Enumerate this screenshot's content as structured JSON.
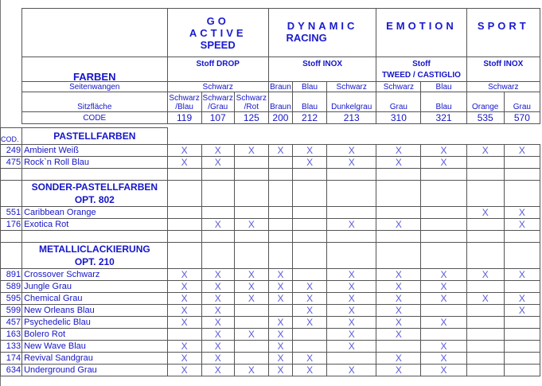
{
  "header": {
    "farben": "FARBEN",
    "seitenwangen": "Seitenwangen",
    "sitzflaeche": "Sitzfläche",
    "code": "CODE",
    "models": [
      {
        "name": [
          "GO",
          "ACTIVE",
          "SPEED"
        ],
        "fabric": [
          "Stoff DROP"
        ],
        "seitenwangen": [
          {
            "label": "Schwarz",
            "span": 3
          }
        ]
      },
      {
        "name": [
          "DYNAMIC",
          "RACING"
        ],
        "fabric": [
          "Stoff INOX"
        ],
        "seitenwangen": [
          {
            "label": "Braun",
            "span": 1
          },
          {
            "label": "Blau",
            "span": 1
          },
          {
            "label": "Schwarz",
            "span": 1
          }
        ]
      },
      {
        "name": [
          "EMOTION"
        ],
        "fabric": [
          "Stoff",
          "TWEED / CASTIGLIO"
        ],
        "seitenwangen": [
          {
            "label": "Schwarz",
            "span": 1
          },
          {
            "label": "Blau",
            "span": 1
          }
        ]
      },
      {
        "name": [
          "SPORT"
        ],
        "fabric": [
          "Stoff INOX"
        ],
        "seitenwangen": [
          {
            "label": "Schwarz",
            "span": 2
          }
        ]
      }
    ],
    "columns": [
      {
        "sitz": "Schwarz /Blau",
        "code": "119"
      },
      {
        "sitz": "Schwarz /Grau",
        "code": "107"
      },
      {
        "sitz": "Schwarz /Rot",
        "code": "125"
      },
      {
        "sitz": "Braun",
        "code": "200"
      },
      {
        "sitz": "Blau",
        "code": "212"
      },
      {
        "sitz": "Dunkelgrau",
        "code": "213"
      },
      {
        "sitz": "Grau",
        "code": "310"
      },
      {
        "sitz": "Blau",
        "code": "321"
      },
      {
        "sitz": "Orange",
        "code": "535"
      },
      {
        "sitz": "Grau",
        "code": "570"
      }
    ]
  },
  "mark": "X",
  "body": [
    {
      "type": "section",
      "cod": "COD.",
      "title": [
        "PASTELLFARBEN"
      ],
      "open": true
    },
    {
      "type": "row",
      "code": "249",
      "name": "Ambient Weiß",
      "marks": [
        1,
        1,
        1,
        1,
        1,
        1,
        1,
        1,
        1,
        1
      ]
    },
    {
      "type": "row",
      "code": "475",
      "name": "Rock`n Roll Blau",
      "marks": [
        1,
        1,
        0,
        0,
        1,
        1,
        1,
        1,
        0,
        0
      ]
    },
    {
      "type": "empty"
    },
    {
      "type": "section",
      "cod": "",
      "title": [
        "SONDER-PASTELLFARBEN",
        "OPT. 802"
      ]
    },
    {
      "type": "row",
      "code": "551",
      "name": "Caribbean Orange",
      "marks": [
        0,
        0,
        0,
        0,
        0,
        0,
        0,
        0,
        1,
        1
      ]
    },
    {
      "type": "row",
      "code": "176",
      "name": "Exotica Rot",
      "marks": [
        0,
        1,
        1,
        0,
        0,
        1,
        1,
        0,
        0,
        1
      ]
    },
    {
      "type": "empty"
    },
    {
      "type": "section",
      "cod": "",
      "title": [
        "METALLICLACKIERUNG",
        "OPT. 210"
      ]
    },
    {
      "type": "row",
      "code": "891",
      "name": "Crossover Schwarz",
      "marks": [
        1,
        1,
        1,
        1,
        0,
        1,
        1,
        1,
        1,
        1
      ]
    },
    {
      "type": "row",
      "code": "589",
      "name": "Jungle Grau",
      "marks": [
        1,
        1,
        1,
        1,
        1,
        1,
        1,
        1,
        0,
        0
      ]
    },
    {
      "type": "row",
      "code": "595",
      "name": "Chemical Grau",
      "marks": [
        1,
        1,
        1,
        1,
        1,
        1,
        1,
        1,
        1,
        1
      ]
    },
    {
      "type": "row",
      "code": "599",
      "name": "New Orleans Blau",
      "marks": [
        1,
        1,
        0,
        0,
        1,
        1,
        1,
        0,
        0,
        1
      ]
    },
    {
      "type": "row",
      "code": "457",
      "name": "Psychedelic Blau",
      "marks": [
        1,
        1,
        0,
        1,
        1,
        1,
        1,
        1,
        0,
        0
      ]
    },
    {
      "type": "row",
      "code": "163",
      "name": "Bolero Rot",
      "marks": [
        0,
        1,
        1,
        1,
        0,
        1,
        1,
        0,
        0,
        0
      ]
    },
    {
      "type": "row",
      "code": "133",
      "name": "New Wave Blau",
      "marks": [
        1,
        1,
        0,
        1,
        0,
        1,
        0,
        1,
        0,
        0
      ]
    },
    {
      "type": "row",
      "code": "174",
      "name": "Revival Sandgrau",
      "marks": [
        1,
        1,
        0,
        1,
        1,
        0,
        1,
        1,
        0,
        0
      ]
    },
    {
      "type": "row",
      "code": "634",
      "name": "Underground Grau",
      "marks": [
        1,
        1,
        1,
        1,
        1,
        1,
        1,
        1,
        0,
        0
      ]
    }
  ]
}
